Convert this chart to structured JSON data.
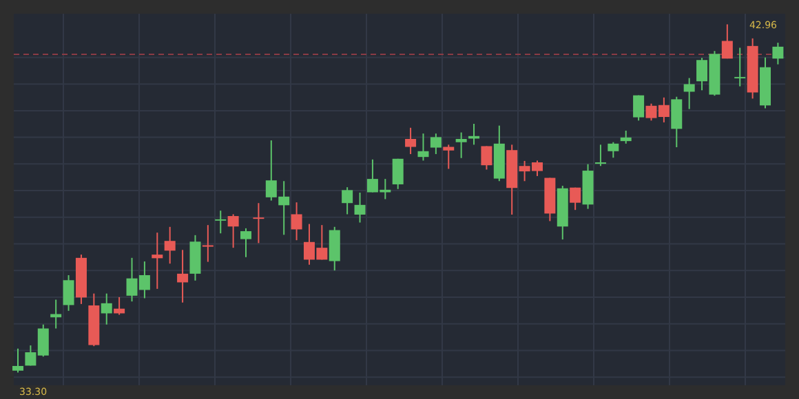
{
  "chart_data": {
    "type": "candlestick",
    "categories": [
      null,
      null,
      null,
      null,
      null,
      null,
      null,
      null,
      null,
      null,
      null,
      null,
      null,
      null,
      null,
      null,
      null,
      null,
      null,
      null,
      null,
      null,
      null,
      null,
      null,
      null,
      null,
      null,
      null,
      null,
      null,
      null,
      null,
      null,
      null,
      null,
      null,
      null,
      null,
      null,
      null,
      null,
      null,
      null,
      null,
      null,
      null,
      null,
      null,
      null,
      null,
      null,
      null,
      null,
      null,
      null,
      null,
      null,
      null,
      null,
      null
    ],
    "ohlc": [
      [
        33.35,
        33.96,
        33.3,
        33.48
      ],
      [
        33.49,
        34.05,
        33.49,
        33.86
      ],
      [
        33.77,
        34.63,
        33.74,
        34.52
      ],
      [
        34.83,
        35.32,
        34.52,
        34.92
      ],
      [
        35.17,
        36.0,
        35.01,
        35.86
      ],
      [
        36.48,
        36.57,
        35.2,
        35.38
      ],
      [
        35.16,
        35.49,
        34.03,
        34.06
      ],
      [
        34.94,
        35.49,
        34.63,
        35.22
      ],
      [
        35.07,
        35.39,
        34.9,
        34.94
      ],
      [
        35.43,
        36.48,
        35.27,
        35.91
      ],
      [
        35.59,
        36.38,
        35.36,
        36.0
      ],
      [
        36.57,
        37.18,
        35.62,
        36.47
      ],
      [
        36.95,
        37.34,
        36.32,
        36.68
      ],
      [
        36.04,
        36.7,
        35.24,
        35.8
      ],
      [
        36.04,
        37.11,
        35.85,
        36.93
      ],
      [
        36.83,
        37.39,
        36.37,
        36.79
      ],
      [
        37.54,
        37.79,
        37.16,
        37.55
      ],
      [
        37.64,
        37.69,
        36.76,
        37.35
      ],
      [
        37.0,
        37.3,
        36.5,
        37.22
      ],
      [
        37.6,
        38.0,
        36.89,
        37.58
      ],
      [
        38.16,
        39.74,
        38.07,
        38.63
      ],
      [
        37.94,
        38.61,
        37.12,
        38.18
      ],
      [
        37.69,
        38.02,
        36.97,
        37.27
      ],
      [
        36.92,
        37.42,
        36.29,
        36.43
      ],
      [
        36.76,
        37.39,
        36.43,
        36.43
      ],
      [
        36.39,
        37.34,
        36.13,
        37.25
      ],
      [
        38.0,
        38.44,
        37.69,
        38.36
      ],
      [
        37.68,
        38.29,
        37.46,
        37.95
      ],
      [
        38.3,
        39.21,
        38.3,
        38.67
      ],
      [
        38.3,
        38.67,
        38.11,
        38.37
      ],
      [
        38.52,
        39.23,
        38.39,
        39.23
      ],
      [
        39.78,
        40.09,
        39.36,
        39.56
      ],
      [
        39.28,
        39.93,
        39.18,
        39.44
      ],
      [
        39.54,
        39.93,
        39.36,
        39.83
      ],
      [
        39.56,
        39.62,
        38.95,
        39.46
      ],
      [
        39.69,
        39.96,
        39.25,
        39.78
      ],
      [
        39.79,
        40.2,
        39.62,
        39.86
      ],
      [
        39.58,
        39.58,
        38.93,
        39.05
      ],
      [
        38.68,
        40.15,
        38.61,
        39.65
      ],
      [
        39.47,
        39.62,
        37.68,
        38.42
      ],
      [
        39.03,
        39.17,
        38.61,
        38.88
      ],
      [
        39.13,
        39.18,
        38.75,
        38.89
      ],
      [
        38.7,
        38.7,
        37.5,
        37.71
      ],
      [
        37.35,
        38.48,
        36.99,
        38.41
      ],
      [
        38.43,
        38.43,
        37.81,
        38.01
      ],
      [
        37.96,
        39.08,
        37.84,
        38.9
      ],
      [
        39.09,
        39.62,
        39.03,
        39.13
      ],
      [
        39.44,
        39.69,
        39.26,
        39.65
      ],
      [
        39.72,
        40.01,
        39.65,
        39.82
      ],
      [
        40.38,
        40.99,
        40.29,
        40.99
      ],
      [
        40.7,
        40.76,
        40.29,
        40.36
      ],
      [
        40.72,
        40.93,
        40.24,
        40.39
      ],
      [
        40.06,
        40.95,
        39.55,
        40.88
      ],
      [
        41.09,
        41.47,
        40.61,
        41.3
      ],
      [
        41.38,
        42.03,
        41.13,
        41.97
      ],
      [
        41.01,
        42.22,
        40.98,
        42.14
      ],
      [
        42.5,
        42.96,
        42.01,
        42.01
      ],
      [
        41.47,
        42.31,
        41.24,
        41.5
      ],
      [
        42.36,
        42.57,
        40.9,
        41.07
      ],
      [
        40.71,
        42.04,
        40.63,
        41.77
      ],
      [
        42.01,
        42.45,
        41.85,
        42.34
      ]
    ],
    "annotations": [
      "42.96",
      "33.30"
    ],
    "ref_lines": [
      {
        "axis": "y",
        "value": 42.13,
        "color": "#8a3b45",
        "line_style": "dashed"
      }
    ],
    "grid": true
  }
}
